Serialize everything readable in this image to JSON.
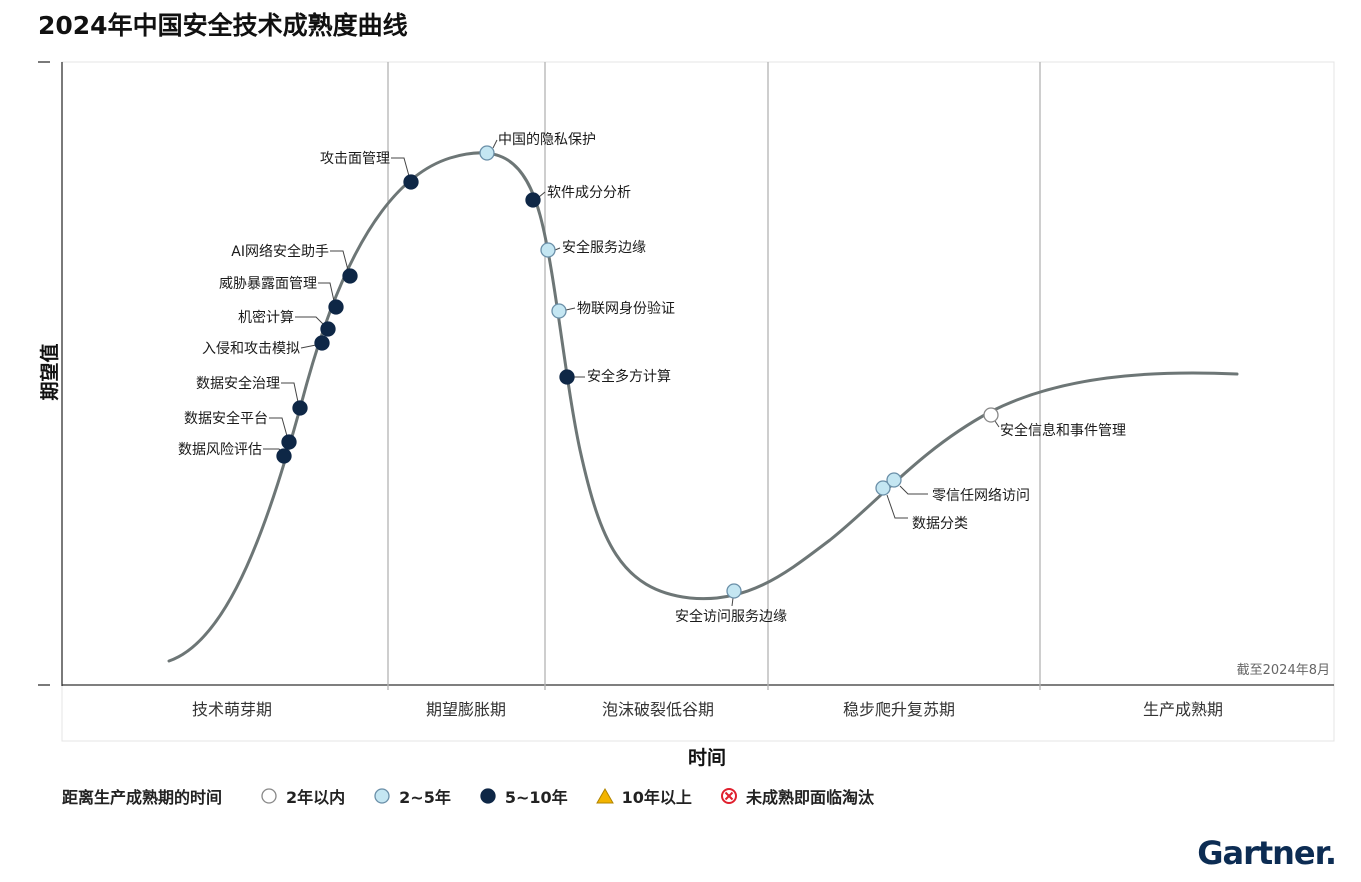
{
  "chart_data": {
    "type": "hype-cycle",
    "title": "2024年中国安全技术成熟度曲线",
    "xlabel": "时间",
    "ylabel": "期望值",
    "as_of": "截至2024年8月",
    "phases": [
      "技术萌芽期",
      "期望膨胀期",
      "泡沫破裂低谷期",
      "稳步爬升复苏期",
      "生产成熟期"
    ],
    "legend": {
      "title": "距离生产成熟期的时间",
      "items": [
        {
          "key": "lt2",
          "label": "2年以内"
        },
        {
          "key": "2to5",
          "label": "2~5年"
        },
        {
          "key": "5to10",
          "label": "5~10年"
        },
        {
          "key": "gt10",
          "label": "10年以上"
        },
        {
          "key": "obsolete",
          "label": "未成熟即面临淘汰"
        }
      ]
    },
    "colors": {
      "lt2": "#ffffff",
      "2to5": "#c4e6f2",
      "5to10": "#0e2746",
      "gt10": "#f3b400",
      "obsolete": "#e0202e",
      "curve": "#6d7676",
      "divider": "#b4b4b4"
    },
    "technologies": [
      {
        "name": "数据风险评估",
        "phase": "技术萌芽期",
        "category": "5to10"
      },
      {
        "name": "数据安全平台",
        "phase": "技术萌芽期",
        "category": "5to10"
      },
      {
        "name": "数据安全治理",
        "phase": "技术萌芽期",
        "category": "5to10"
      },
      {
        "name": "入侵和攻击模拟",
        "phase": "技术萌芽期",
        "category": "5to10"
      },
      {
        "name": "机密计算",
        "phase": "技术萌芽期",
        "category": "5to10"
      },
      {
        "name": "威胁暴露面管理",
        "phase": "技术萌芽期",
        "category": "5to10"
      },
      {
        "name": "AI网络安全助手",
        "phase": "技术萌芽期",
        "category": "5to10"
      },
      {
        "name": "攻击面管理",
        "phase": "期望膨胀期",
        "category": "5to10"
      },
      {
        "name": "中国的隐私保护",
        "phase": "期望膨胀期",
        "category": "2to5"
      },
      {
        "name": "软件成分分析",
        "phase": "期望膨胀期",
        "category": "5to10"
      },
      {
        "name": "安全服务边缘",
        "phase": "泡沫破裂低谷期",
        "category": "2to5"
      },
      {
        "name": "物联网身份验证",
        "phase": "泡沫破裂低谷期",
        "category": "2to5"
      },
      {
        "name": "安全多方计算",
        "phase": "泡沫破裂低谷期",
        "category": "5to10"
      },
      {
        "name": "安全访问服务边缘",
        "phase": "泡沫破裂低谷期",
        "category": "2to5"
      },
      {
        "name": "数据分类",
        "phase": "稳步爬升复苏期",
        "category": "2to5"
      },
      {
        "name": "零信任网络访问",
        "phase": "稳步爬升复苏期",
        "category": "2to5"
      },
      {
        "name": "安全信息和事件管理",
        "phase": "稳步爬升复苏期",
        "category": "lt2"
      }
    ]
  },
  "logo": {
    "text": "Gartner",
    "dot": "."
  }
}
